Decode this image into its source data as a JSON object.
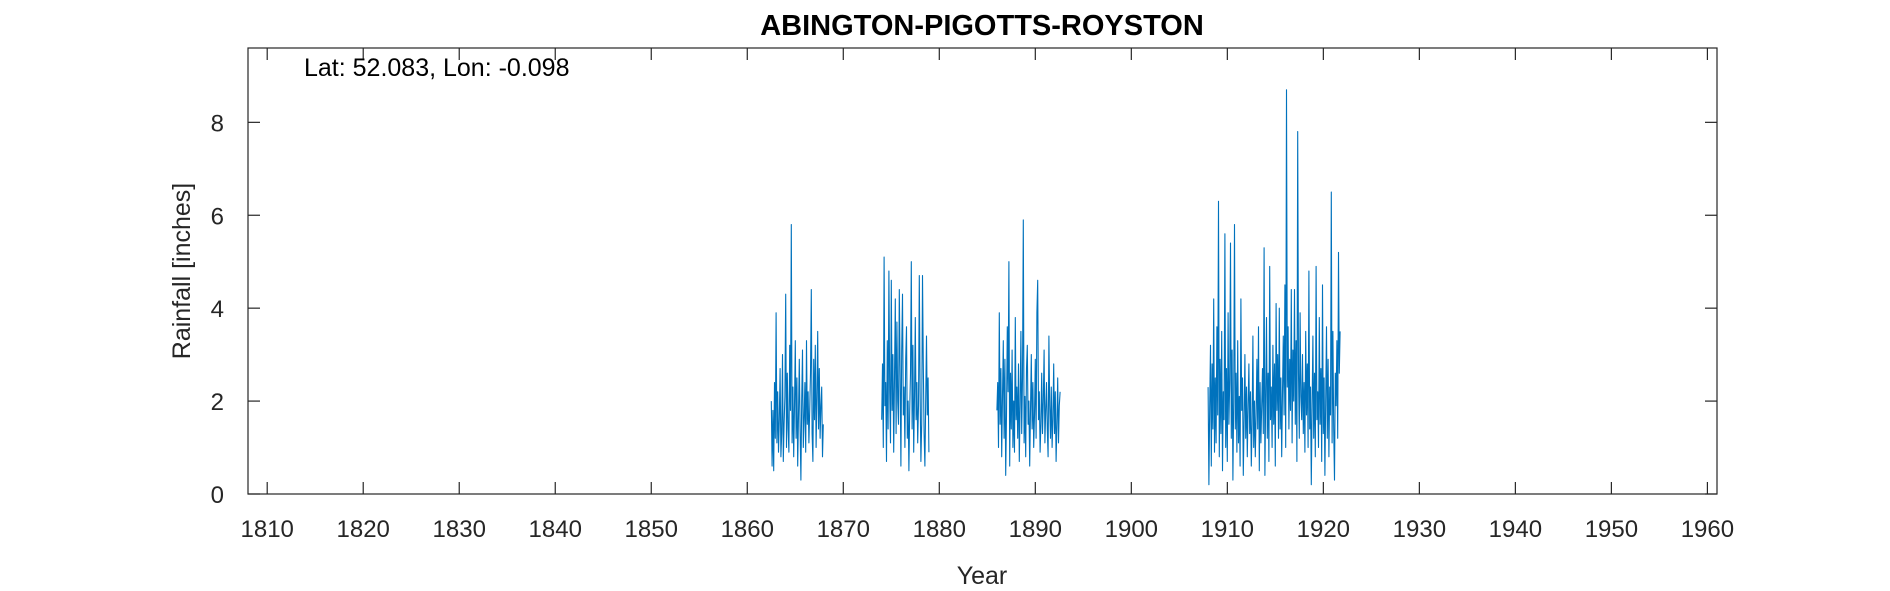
{
  "chart_data": {
    "type": "line",
    "title": "ABINGTON-PIGOTTS-ROYSTON",
    "annotation": "Lat: 52.083, Lon: -0.098",
    "xlabel": "Year",
    "ylabel": "Rainfall [inches]",
    "xlim": [
      1808,
      1961
    ],
    "ylim": [
      0,
      9.6
    ],
    "xticks": [
      1810,
      1820,
      1830,
      1840,
      1850,
      1860,
      1870,
      1880,
      1890,
      1900,
      1910,
      1920,
      1930,
      1940,
      1950,
      1960
    ],
    "yticks": [
      0,
      2,
      4,
      6,
      8
    ],
    "grid": false,
    "line_color": "#0072BD",
    "series": [
      {
        "segments": [
          {
            "start_year": 1862.5,
            "monthly_values": [
              2.0,
              0.6,
              1.8,
              0.5,
              2.4,
              1.2,
              3.9,
              1.1,
              2.2,
              0.9,
              1.6,
              2.7,
              0.8,
              1.3,
              3.0,
              0.7,
              1.5,
              2.1,
              4.3,
              1.0,
              2.6,
              1.4,
              0.9,
              3.2,
              1.8,
              5.8,
              1.1,
              2.3,
              0.8,
              1.9,
              3.3,
              1.2,
              2.5,
              0.6,
              1.7,
              2.9,
              1.4,
              0.3,
              2.0,
              3.1,
              1.0,
              1.6,
              2.4,
              0.9,
              3.3,
              1.5,
              2.2,
              1.1,
              1.8,
              2.6,
              4.4,
              1.3,
              0.7,
              2.9,
              1.6,
              3.2,
              1.0,
              2.1,
              3.5,
              1.4,
              2.7,
              1.2,
              1.9,
              2.3,
              0.8,
              1.5
            ]
          },
          {
            "start_year": 1874.0,
            "monthly_values": [
              1.6,
              2.8,
              1.0,
              5.1,
              1.9,
              2.4,
              0.7,
              3.3,
              1.4,
              4.8,
              2.2,
              1.1,
              4.6,
              1.8,
              3.0,
              0.9,
              2.5,
              4.2,
              1.3,
              3.7,
              2.0,
              1.5,
              4.4,
              2.7,
              0.6,
              3.1,
              4.3,
              1.7,
              2.3,
              1.0,
              2.9,
              3.6,
              1.2,
              2.0,
              0.5,
              1.8,
              2.6,
              5.0,
              1.4,
              3.2,
              0.9,
              2.1,
              3.8,
              1.6,
              2.4,
              1.1,
              1.9,
              4.7,
              2.2,
              0.7,
              1.5,
              4.7,
              2.8,
              1.3,
              0.6,
              2.0,
              3.4,
              1.7,
              2.5,
              0.9
            ]
          },
          {
            "start_year": 1886.0,
            "monthly_values": [
              1.8,
              2.4,
              1.0,
              3.9,
              1.5,
              2.7,
              0.8,
              2.1,
              3.3,
              1.2,
              2.9,
              0.4,
              1.7,
              3.6,
              2.2,
              5.0,
              0.6,
              2.6,
              1.4,
              3.1,
              1.0,
              2.0,
              0.9,
              3.8,
              1.6,
              2.3,
              1.2,
              2.8,
              0.7,
              1.9,
              3.5,
              1.3,
              2.5,
              5.9,
              1.1,
              2.1,
              0.8,
              2.7,
              3.2,
              1.5,
              2.0,
              0.6,
              1.8,
              3.0,
              1.4,
              2.4,
              1.0,
              1.7,
              2.9,
              1.2,
              3.9,
              4.6,
              1.6,
              2.2,
              0.9,
              1.5,
              2.6,
              1.3,
              2.0,
              3.1,
              1.1,
              1.8,
              2.4,
              1.4,
              0.8,
              3.4,
              1.9,
              1.2,
              2.3,
              1.0,
              1.6,
              2.8,
              1.3,
              2.2,
              0.7,
              1.5,
              2.5,
              1.1,
              1.9,
              2.2
            ]
          },
          {
            "start_year": 1908.0,
            "monthly_values": [
              2.3,
              0.2,
              1.9,
              3.2,
              0.6,
              2.8,
              1.4,
              4.2,
              0.9,
              2.5,
              1.1,
              3.6,
              1.7,
              6.3,
              0.8,
              2.9,
              1.3,
              3.5,
              0.5,
              2.2,
              1.6,
              5.6,
              1.0,
              2.7,
              0.7,
              3.9,
              1.5,
              2.4,
              5.4,
              1.2,
              3.1,
              0.3,
              2.0,
              5.8,
              1.4,
              2.6,
              0.9,
              3.3,
              1.1,
              2.1,
              0.6,
              4.2,
              1.8,
              2.5,
              0.4,
              1.6,
              3.0,
              1.2,
              2.3,
              0.8,
              1.9,
              2.8,
              1.3,
              2.2,
              0.6,
              1.5,
              3.4,
              1.0,
              2.0,
              0.8,
              1.7,
              2.9,
              1.4,
              3.6,
              0.5,
              2.4,
              1.1,
              1.9,
              2.7,
              1.3,
              5.3,
              0.4,
              2.1,
              3.8,
              1.2,
              2.6,
              0.7,
              4.9,
              1.6,
              2.3,
              1.0,
              3.2,
              1.5,
              2.8,
              0.6,
              4.1,
              1.8,
              3.0,
              1.2,
              4.0,
              1.4,
              2.5,
              0.8,
              2.2,
              3.4,
              1.7,
              4.5,
              1.0,
              8.7,
              2.3,
              3.6,
              1.4,
              2.9,
              1.8,
              4.4,
              1.1,
              3.1,
              2.0,
              4.4,
              1.5,
              3.3,
              0.7,
              7.8,
              2.6,
              1.2,
              3.9,
              2.1,
              1.6,
              3.0,
              1.3,
              2.4,
              0.9,
              3.5,
              1.7,
              2.8,
              1.0,
              4.8,
              1.4,
              2.3,
              0.2,
              1.9,
              3.4,
              1.2,
              2.6,
              0.8,
              4.9,
              1.6,
              2.2,
              1.0,
              3.8,
              1.5,
              2.7,
              0.7,
              4.5,
              1.3,
              2.5,
              0.4,
              2.0,
              3.6,
              1.2,
              2.9,
              0.8,
              2.3,
              1.7,
              6.5,
              1.1,
              3.5,
              1.4,
              0.3,
              2.6,
              1.9,
              3.3,
              1.2,
              5.2,
              2.6,
              3.5
            ]
          }
        ]
      }
    ]
  }
}
